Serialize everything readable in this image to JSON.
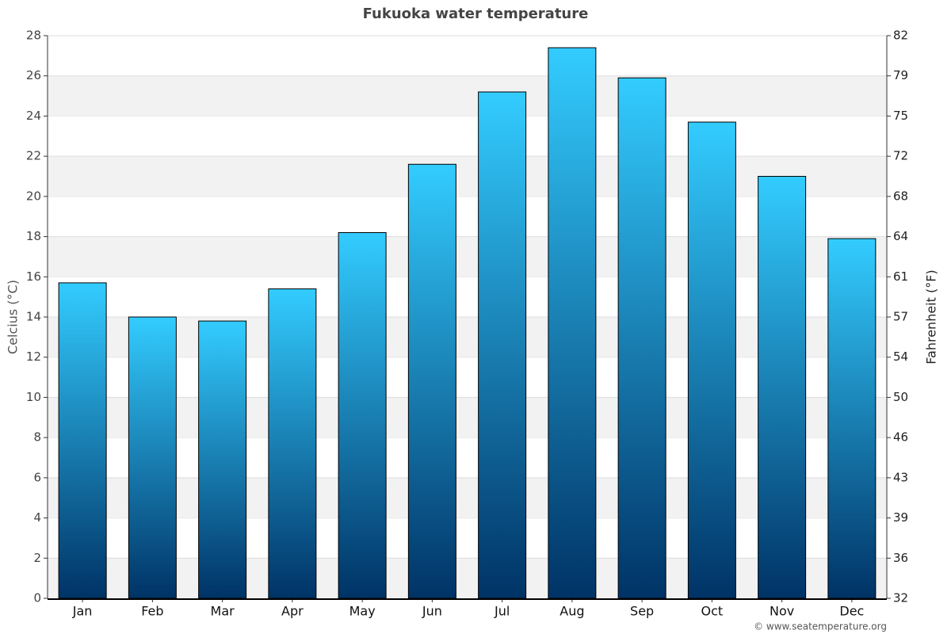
{
  "chart_data": {
    "type": "bar",
    "title": "Fukuoka water temperature",
    "y_label": "Celcius (°C)",
    "y2_label": "Fahrenheit (°F)",
    "credit": "© www.seatemperature.org",
    "categories": [
      "Jan",
      "Feb",
      "Mar",
      "Apr",
      "May",
      "Jun",
      "Jul",
      "Aug",
      "Sep",
      "Oct",
      "Nov",
      "Dec"
    ],
    "values": [
      15.7,
      14.0,
      13.8,
      15.4,
      18.2,
      21.6,
      25.2,
      27.4,
      25.9,
      23.7,
      21.0,
      17.9
    ],
    "color": [
      "#33ccff",
      "#003366"
    ],
    "ylim": [
      0,
      28
    ],
    "yticks": [
      0,
      2,
      4,
      6,
      8,
      10,
      12,
      14,
      16,
      18,
      20,
      22,
      24,
      26,
      28
    ],
    "y2lim": [
      32,
      82.4
    ],
    "y2ticks": [
      32,
      {
        "value": 35.6,
        "label": "36"
      },
      {
        "value": 39.2,
        "label": "39"
      },
      {
        "value": 42.8,
        "label": "43"
      },
      {
        "value": 46.4,
        "label": "46"
      },
      50,
      {
        "value": 53.6,
        "label": "54"
      },
      {
        "value": 57.2,
        "label": "57"
      },
      {
        "value": 60.8,
        "label": "61"
      },
      {
        "value": 64.4,
        "label": "64"
      },
      68,
      {
        "value": 71.6,
        "label": "72"
      },
      {
        "value": 75.2,
        "label": "75"
      },
      {
        "value": 78.8,
        "label": "79"
      },
      {
        "value": 82.4,
        "label": "82"
      }
    ],
    "grid": true,
    "banded": true
  }
}
